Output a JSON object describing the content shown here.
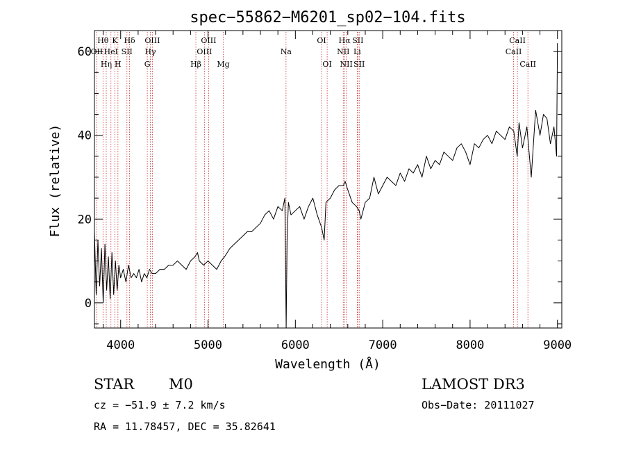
{
  "chart_data": {
    "type": "line",
    "title": "spec−55862−M6201_sp02−104.fits",
    "xlabel": "Wavelength (Å)",
    "ylabel": "Flux (relative)",
    "xlim": [
      3700,
      9050
    ],
    "ylim": [
      -6,
      65
    ],
    "xticks": [
      4000,
      5000,
      6000,
      7000,
      8000,
      9000
    ],
    "yticks": [
      0,
      20,
      40,
      60
    ],
    "xtick_labels": [
      "4000",
      "5000",
      "6000",
      "7000",
      "8000",
      "9000"
    ],
    "ytick_labels": [
      "0",
      "20",
      "40",
      "60"
    ],
    "series": [
      {
        "name": "flux",
        "x": [
          3700,
          3720,
          3740,
          3760,
          3780,
          3800,
          3820,
          3840,
          3860,
          3880,
          3900,
          3920,
          3940,
          3960,
          3980,
          4000,
          4030,
          4060,
          4090,
          4120,
          4150,
          4180,
          4210,
          4240,
          4270,
          4300,
          4330,
          4360,
          4400,
          4450,
          4500,
          4550,
          4600,
          4650,
          4700,
          4750,
          4800,
          4850,
          4880,
          4900,
          4950,
          5000,
          5050,
          5100,
          5150,
          5190,
          5250,
          5300,
          5350,
          5400,
          5450,
          5500,
          5550,
          5600,
          5650,
          5700,
          5750,
          5800,
          5850,
          5880,
          5895,
          5905,
          5920,
          5950,
          6000,
          6050,
          6100,
          6150,
          6200,
          6250,
          6300,
          6330,
          6350,
          6400,
          6450,
          6500,
          6550,
          6570,
          6600,
          6650,
          6700,
          6730,
          6750,
          6800,
          6850,
          6900,
          6950,
          7000,
          7050,
          7100,
          7150,
          7200,
          7250,
          7300,
          7350,
          7400,
          7450,
          7500,
          7550,
          7600,
          7650,
          7700,
          7750,
          7800,
          7850,
          7900,
          7950,
          8000,
          8050,
          8100,
          8150,
          8200,
          8250,
          8300,
          8350,
          8400,
          8450,
          8500,
          8540,
          8560,
          8600,
          8650,
          8700,
          8750,
          8800,
          8840,
          8880,
          8920,
          8960,
          8990,
          9000
        ],
        "y": [
          17,
          2,
          15,
          4,
          13,
          0,
          14,
          3,
          11,
          1,
          12,
          2,
          10,
          3,
          9,
          6,
          8,
          5,
          9,
          6,
          7,
          6,
          8,
          5,
          7,
          6,
          8,
          7,
          7,
          8,
          8,
          9,
          9,
          10,
          9,
          8,
          10,
          11,
          12,
          10,
          9,
          10,
          9,
          8,
          10,
          11,
          13,
          14,
          15,
          16,
          17,
          17,
          18,
          19,
          21,
          22,
          20,
          23,
          22,
          25,
          -6,
          15,
          24,
          21,
          22,
          23,
          20,
          23,
          25,
          21,
          18,
          15,
          24,
          25,
          27,
          28,
          28,
          29,
          27,
          24,
          23,
          22,
          20,
          24,
          25,
          30,
          26,
          28,
          30,
          29,
          28,
          31,
          29,
          32,
          31,
          33,
          30,
          35,
          32,
          34,
          33,
          36,
          35,
          34,
          37,
          38,
          36,
          33,
          38,
          37,
          39,
          40,
          38,
          41,
          40,
          39,
          42,
          41,
          35,
          43,
          37,
          42,
          30,
          46,
          40,
          45,
          44,
          38,
          42,
          35,
          62
        ]
      }
    ],
    "emission_lines": [
      {
        "label": "Hθ",
        "wave": 3798,
        "row": 1
      },
      {
        "label": "OII",
        "wave": 3727,
        "row": 2
      },
      {
        "label": "HeI",
        "wave": 3889,
        "row": 2
      },
      {
        "label": "K",
        "wave": 3934,
        "row": 1
      },
      {
        "label": "Hη",
        "wave": 3835,
        "row": 3
      },
      {
        "label": "SII",
        "wave": 4072,
        "row": 2
      },
      {
        "label": "H",
        "wave": 3969,
        "row": 3
      },
      {
        "label": "Hδ",
        "wave": 4102,
        "row": 1
      },
      {
        "label": "OIII",
        "wave": 4363,
        "row": 1
      },
      {
        "label": "Hγ",
        "wave": 4340,
        "row": 2
      },
      {
        "label": "G",
        "wave": 4305,
        "row": 3
      },
      {
        "label": "Hβ",
        "wave": 4861,
        "row": 3
      },
      {
        "label": "OIII",
        "wave": 4959,
        "row": 2
      },
      {
        "label": "OIII",
        "wave": 5007,
        "row": 1
      },
      {
        "label": "Mg",
        "wave": 5175,
        "row": 3
      },
      {
        "label": "Na",
        "wave": 5893,
        "row": 2
      },
      {
        "label": "OI",
        "wave": 6300,
        "row": 1
      },
      {
        "label": "OI",
        "wave": 6364,
        "row": 3
      },
      {
        "label": "Hα",
        "wave": 6563,
        "row": 1
      },
      {
        "label": "NII",
        "wave": 6548,
        "row": 2
      },
      {
        "label": "NII",
        "wave": 6583,
        "row": 3
      },
      {
        "label": "SII",
        "wave": 6716,
        "row": 1
      },
      {
        "label": "Li",
        "wave": 6708,
        "row": 2
      },
      {
        "label": "SII",
        "wave": 6731,
        "row": 3
      },
      {
        "label": "CaII",
        "wave": 8542,
        "row": 1
      },
      {
        "label": "CaII",
        "wave": 8498,
        "row": 2
      },
      {
        "label": "CaII",
        "wave": 8662,
        "row": 3
      }
    ]
  },
  "info": {
    "class_label": "STAR",
    "subclass": "M0",
    "survey": "LAMOST DR3",
    "velocity": "cz = −51.9 ± 7.2 km/s",
    "obs_date": "Obs−Date: 20111027",
    "coords": "RA =  11.78457, DEC =  35.82641"
  },
  "colors": {
    "line": "#000000",
    "marker": "#c83232"
  }
}
